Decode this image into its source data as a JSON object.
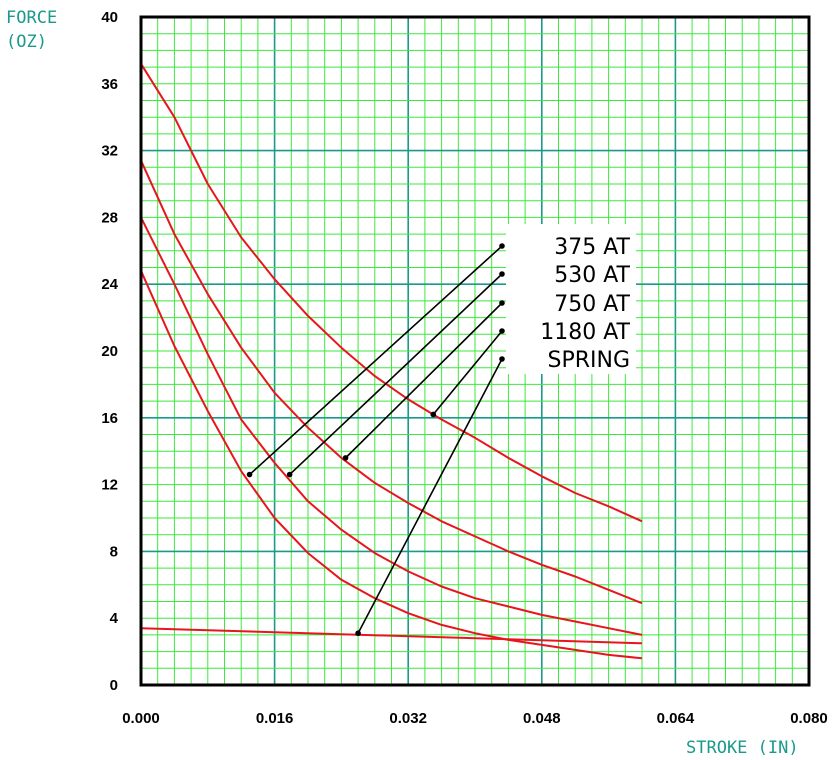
{
  "chart_data": {
    "type": "line",
    "ylabel_line1": "FORCE",
    "ylabel_line2": "(OZ)",
    "xlabel": "STROKE (IN)",
    "xlim": [
      0,
      0.08
    ],
    "ylim": [
      0,
      40
    ],
    "x_ticks": [
      "0.000",
      "0.016",
      "0.032",
      "0.048",
      "0.064",
      "0.080"
    ],
    "y_ticks": [
      "0",
      "4",
      "8",
      "12",
      "16",
      "20",
      "24",
      "28",
      "32",
      "36",
      "40"
    ],
    "grid": true,
    "legend_position": "right",
    "series": [
      {
        "name": "375 AT",
        "x": [
          0,
          0.004,
          0.008,
          0.012,
          0.016,
          0.02,
          0.024,
          0.028,
          0.032,
          0.036,
          0.04,
          0.044,
          0.048,
          0.052,
          0.056,
          0.06
        ],
        "y": [
          24.8,
          20.3,
          16.4,
          12.8,
          10.0,
          7.9,
          6.3,
          5.2,
          4.3,
          3.6,
          3.1,
          2.7,
          2.4,
          2.1,
          1.8,
          1.6
        ]
      },
      {
        "name": "530 AT",
        "x": [
          0,
          0.004,
          0.008,
          0.012,
          0.016,
          0.02,
          0.024,
          0.028,
          0.032,
          0.036,
          0.04,
          0.044,
          0.048,
          0.052,
          0.056,
          0.06
        ],
        "y": [
          28.0,
          24.0,
          19.8,
          15.9,
          13.3,
          11.0,
          9.3,
          7.9,
          6.8,
          5.9,
          5.2,
          4.7,
          4.2,
          3.8,
          3.4,
          3.0
        ]
      },
      {
        "name": "750 AT",
        "x": [
          0,
          0.004,
          0.008,
          0.012,
          0.016,
          0.02,
          0.024,
          0.028,
          0.032,
          0.036,
          0.04,
          0.044,
          0.048,
          0.052,
          0.056,
          0.06
        ],
        "y": [
          31.4,
          27.0,
          23.4,
          20.2,
          17.5,
          15.4,
          13.6,
          12.1,
          10.9,
          9.8,
          8.9,
          8.0,
          7.2,
          6.5,
          5.7,
          4.9
        ]
      },
      {
        "name": "1180 AT",
        "x": [
          0,
          0.004,
          0.008,
          0.012,
          0.016,
          0.02,
          0.024,
          0.028,
          0.032,
          0.036,
          0.04,
          0.044,
          0.048,
          0.052,
          0.056,
          0.06
        ],
        "y": [
          37.2,
          34.0,
          30.0,
          26.8,
          24.3,
          22.1,
          20.2,
          18.5,
          17.1,
          15.9,
          14.8,
          13.6,
          12.5,
          11.5,
          10.7,
          9.8
        ]
      },
      {
        "name": "SPRING",
        "x": [
          0,
          0.06
        ],
        "y": [
          3.4,
          2.5
        ]
      }
    ],
    "legend_anchors": [
      {
        "label": "375 AT",
        "point_x": 0.013,
        "point_y": 12.6
      },
      {
        "label": "530 AT",
        "point_x": 0.0178,
        "point_y": 12.6
      },
      {
        "label": "750 AT",
        "point_x": 0.0245,
        "point_y": 13.6
      },
      {
        "label": "1180 AT",
        "point_x": 0.035,
        "point_y": 16.2
      },
      {
        "label": "SPRING",
        "point_x": 0.026,
        "point_y": 3.1
      }
    ],
    "colors": {
      "curve": "#e8161c",
      "grid_minor": "#3ee83e",
      "grid_major": "#1a9a8a",
      "axis": "#000000",
      "leader": "#000000"
    }
  }
}
